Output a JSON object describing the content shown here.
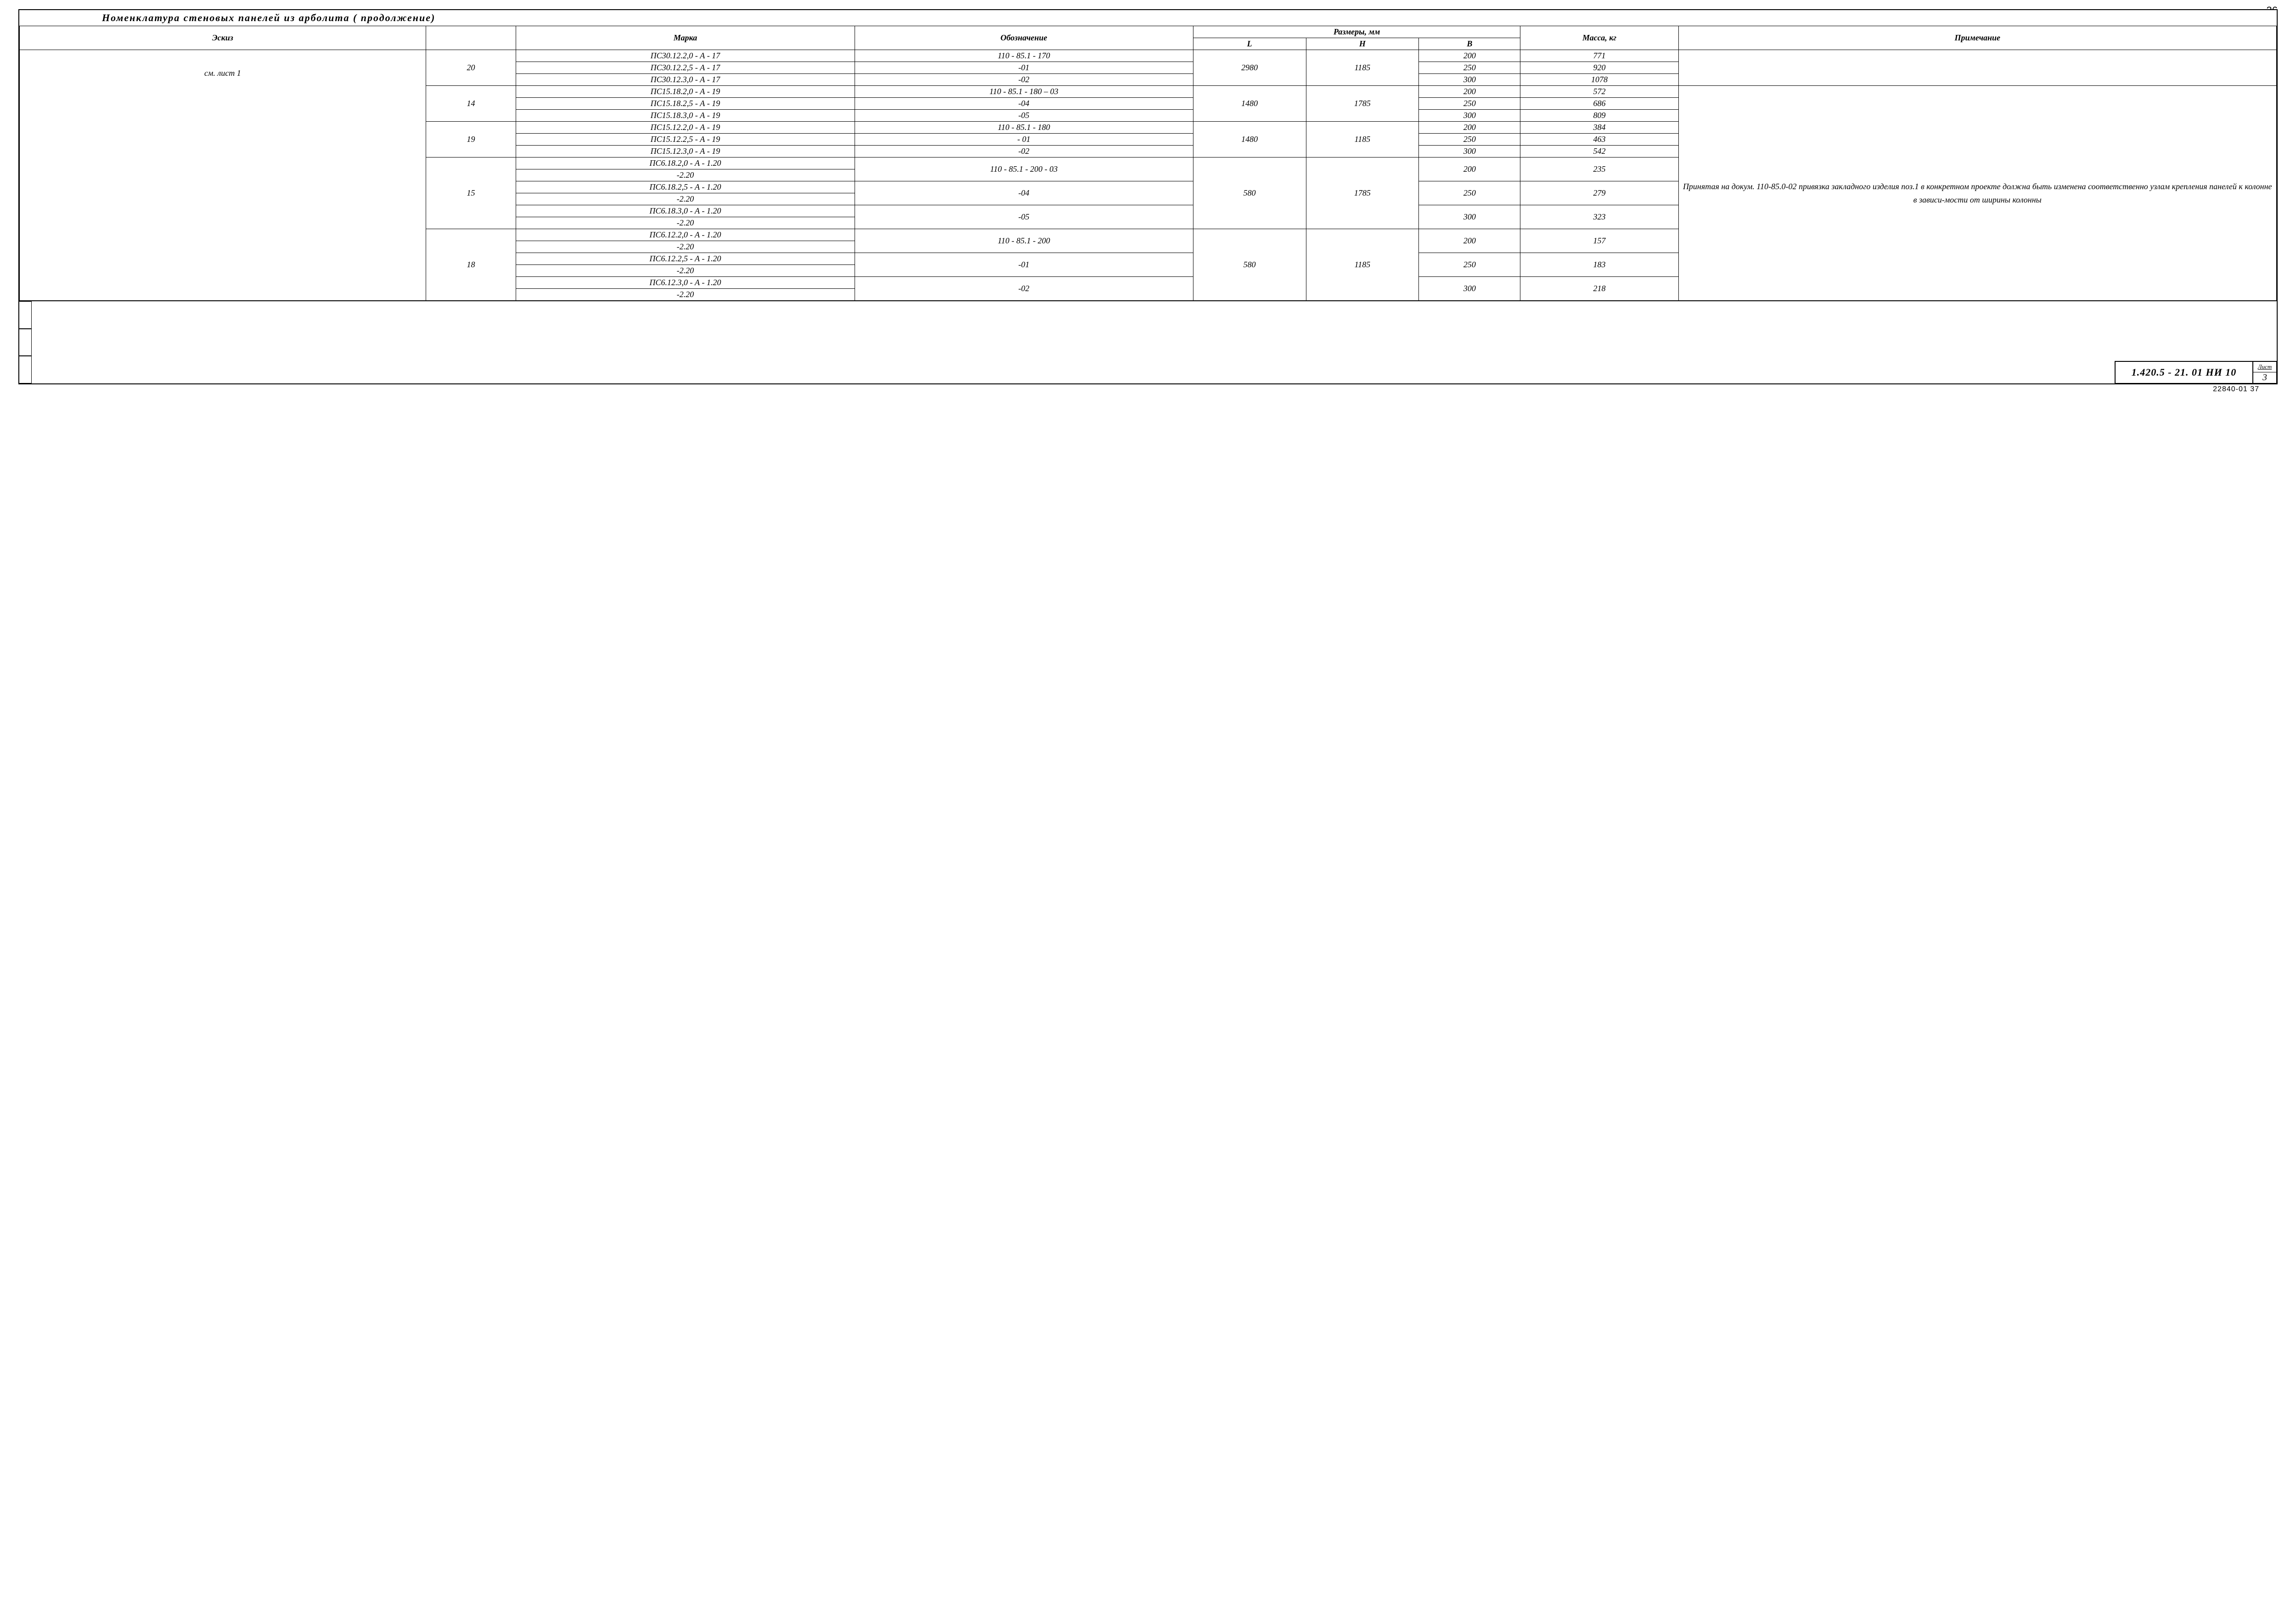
{
  "page_number_top": "36",
  "title": "Номенклатура   стеновых   панелей   из  арболита       ( продолжение)",
  "headers": {
    "eskiz": "Эскиз",
    "marka": "Марка",
    "oboz": "Обозначение",
    "razmery": "Размеры, мм",
    "L": "L",
    "H": "H",
    "B": "B",
    "massa": "Масса, кг",
    "prim": "Примечание"
  },
  "eskiz_note": "см. лист 1",
  "groups": [
    {
      "num": "20",
      "L": "2980",
      "H": "1185",
      "rows": [
        {
          "marka": "ПС30.12.2,0 - А - 17",
          "oboz": "110 - 85.1 - 170",
          "B": "200",
          "massa": "771"
        },
        {
          "marka": "ПС30.12.2,5 - А - 17",
          "oboz": "-01",
          "B": "250",
          "massa": "920"
        },
        {
          "marka": "ПС30.12.3,0 - А - 17",
          "oboz": "-02",
          "B": "300",
          "massa": "1078"
        }
      ]
    },
    {
      "num": "14",
      "L": "1480",
      "H": "1785",
      "rows": [
        {
          "marka": "ПС15.18.2,0 - А - 19",
          "oboz": "110 - 85.1 - 180 – 03",
          "B": "200",
          "massa": "572"
        },
        {
          "marka": "ПС15.18.2,5 - А - 19",
          "oboz": "-04",
          "B": "250",
          "massa": "686"
        },
        {
          "marka": "ПС15.18.3,0 - А - 19",
          "oboz": "-05",
          "B": "300",
          "massa": "809"
        }
      ]
    },
    {
      "num": "19",
      "L": "1480",
      "H": "1185",
      "rows": [
        {
          "marka": "ПС15.12.2,0 - А - 19",
          "oboz": "110 - 85.1 - 180",
          "B": "200",
          "massa": "384"
        },
        {
          "marka": "ПС15.12.2,5 - А - 19",
          "oboz": "- 01",
          "B": "250",
          "massa": "463"
        },
        {
          "marka": "ПС15.12.3,0 - А - 19",
          "oboz": "-02",
          "B": "300",
          "massa": "542"
        }
      ]
    },
    {
      "num": "15",
      "L": "580",
      "H": "1785",
      "rows": [
        {
          "marka": "ПС6.18.2,0 - А - 1.20",
          "marka2": "-2.20",
          "oboz": "110 - 85.1 - 200 - 03",
          "B": "200",
          "massa": "235"
        },
        {
          "marka": "ПС6.18.2,5 - А - 1.20",
          "marka2": "-2.20",
          "oboz": "-04",
          "B": "250",
          "massa": "279"
        },
        {
          "marka": "ПС6.18.3,0 - А - 1.20",
          "marka2": "-2.20",
          "oboz": "-05",
          "B": "300",
          "massa": "323"
        }
      ]
    },
    {
      "num": "18",
      "L": "580",
      "H": "1185",
      "rows": [
        {
          "marka": "ПС6.12.2,0 - А - 1.20",
          "marka2": "-2.20",
          "oboz": "110 - 85.1 - 200",
          "B": "200",
          "massa": "157"
        },
        {
          "marka": "ПС6.12.2,5 - А - 1.20",
          "marka2": "-2.20",
          "oboz": "-01",
          "B": "250",
          "massa": "183"
        },
        {
          "marka": "ПС6.12.3,0 - А - 1.20",
          "marka2": "-2.20",
          "oboz": "-02",
          "B": "300",
          "massa": "218"
        }
      ]
    }
  ],
  "note_text": "Принятая  на  докум. 110-85.0-02 привязка  закладного  изделия поз.1 в  конкретном  проекте  должна быть изменена  соответственно  узлам крепления панелей  к колонне в зависи-мости  от  ширины  колонны",
  "stamp": {
    "code": "1.420.5 - 21. 01  НИ 10",
    "list_label": "Лист",
    "list_num": "3"
  },
  "footer": "22840-01  37"
}
